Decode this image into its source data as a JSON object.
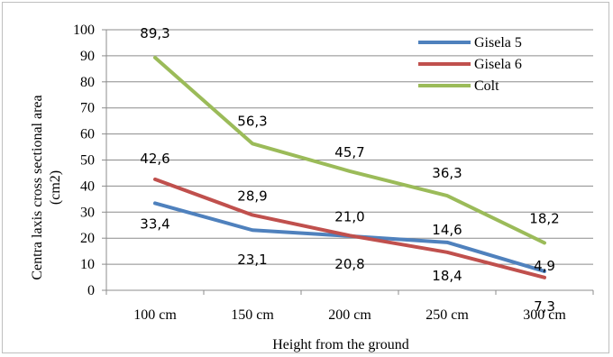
{
  "chart_data": {
    "type": "line",
    "categories": [
      "100 cm",
      "150 cm",
      "200 cm",
      "250 cm",
      "300 cm"
    ],
    "series": [
      {
        "name": "Gisela 5",
        "color": "#4f81bd",
        "values": [
          33.4,
          23.1,
          20.8,
          18.4,
          7.3
        ],
        "labels": [
          "33,4",
          "23,1",
          "20,8",
          "18,4",
          "7,3"
        ]
      },
      {
        "name": "Gisela 6",
        "color": "#c0504d",
        "values": [
          42.6,
          28.9,
          21.0,
          14.6,
          4.9
        ],
        "labels": [
          "42,6",
          "28,9",
          "21,0",
          "14,6",
          "4,9"
        ]
      },
      {
        "name": "Colt",
        "color": "#9bbb59",
        "values": [
          89.3,
          56.3,
          45.7,
          36.3,
          18.2
        ],
        "labels": [
          "89,3",
          "56,3",
          "45,7",
          "36,3",
          "18,2"
        ]
      }
    ],
    "xlabel": "Height from the ground",
    "ylabel_lines": [
      "Centra laxis cross sectional area",
      "(cm2)"
    ],
    "ylim": [
      0,
      100
    ],
    "yticks": [
      "0",
      "10",
      "20",
      "30",
      "40",
      "50",
      "60",
      "70",
      "80",
      "90",
      "100"
    ],
    "grid": true,
    "legend_position": "top-right"
  }
}
